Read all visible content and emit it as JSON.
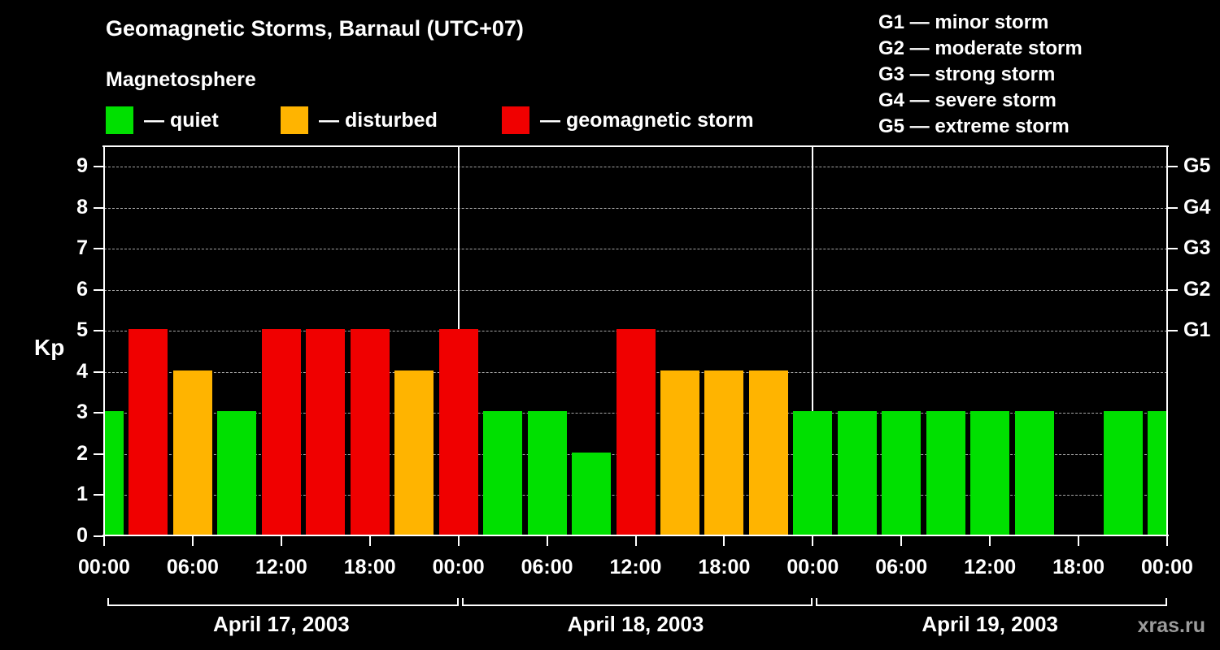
{
  "header": {
    "title": "Geomagnetic Storms, Barnaul (UTC+07)",
    "subtitle": "Magnetosphere"
  },
  "legend": {
    "items": [
      {
        "name": "quiet",
        "label": "— quiet",
        "color": "#00e000"
      },
      {
        "name": "disturbed",
        "label": "— disturbed",
        "color": "#ffb400"
      },
      {
        "name": "storm",
        "label": "— geomagnetic storm",
        "color": "#f00000"
      }
    ]
  },
  "storm_scale": [
    "G1 — minor storm",
    "G2 — moderate storm",
    "G3 — strong storm",
    "G4 — severe storm",
    "G5 — extreme storm"
  ],
  "watermark": "xras.ru",
  "chart_data": {
    "type": "bar",
    "title": "Geomagnetic Storms, Barnaul (UTC+07)",
    "ylabel": "Kp",
    "ylim": [
      0,
      9.5
    ],
    "yticks": [
      0,
      1,
      2,
      3,
      4,
      5,
      6,
      7,
      8,
      9
    ],
    "grid": "dashed horizontal at Kp 1-9",
    "right_axis": [
      {
        "label": "G1",
        "kp": 5
      },
      {
        "label": "G2",
        "kp": 6
      },
      {
        "label": "G3",
        "kp": 7
      },
      {
        "label": "G4",
        "kp": 8
      },
      {
        "label": "G5",
        "kp": 9
      }
    ],
    "x_span_hours": 72,
    "xticks": [
      {
        "hour": 0,
        "label": "00:00"
      },
      {
        "hour": 6,
        "label": "06:00"
      },
      {
        "hour": 12,
        "label": "12:00"
      },
      {
        "hour": 18,
        "label": "18:00"
      },
      {
        "hour": 24,
        "label": "00:00"
      },
      {
        "hour": 30,
        "label": "06:00"
      },
      {
        "hour": 36,
        "label": "12:00"
      },
      {
        "hour": 42,
        "label": "18:00"
      },
      {
        "hour": 48,
        "label": "00:00"
      },
      {
        "hour": 54,
        "label": "06:00"
      },
      {
        "hour": 60,
        "label": "12:00"
      },
      {
        "hour": 66,
        "label": "18:00"
      },
      {
        "hour": 72,
        "label": "00:00"
      }
    ],
    "day_separators_hours": [
      24,
      48
    ],
    "days": [
      {
        "label": "April 17, 2003",
        "start_hour": 0,
        "end_hour": 24
      },
      {
        "label": "April 18, 2003",
        "start_hour": 24,
        "end_hour": 48
      },
      {
        "label": "April 19, 2003",
        "start_hour": 48,
        "end_hour": 72
      }
    ],
    "colors": {
      "quiet": "#00e000",
      "disturbed": "#ffb400",
      "storm": "#f00000"
    },
    "color_rules": {
      "storm_min_kp": 5,
      "disturbed_kp": 4
    },
    "points": [
      {
        "hour": 0,
        "kp": 3
      },
      {
        "hour": 3,
        "kp": 5
      },
      {
        "hour": 6,
        "kp": 4
      },
      {
        "hour": 9,
        "kp": 3
      },
      {
        "hour": 12,
        "kp": 5
      },
      {
        "hour": 15,
        "kp": 5
      },
      {
        "hour": 18,
        "kp": 5
      },
      {
        "hour": 21,
        "kp": 4
      },
      {
        "hour": 24,
        "kp": 5
      },
      {
        "hour": 27,
        "kp": 3
      },
      {
        "hour": 30,
        "kp": 3
      },
      {
        "hour": 33,
        "kp": 2
      },
      {
        "hour": 36,
        "kp": 5
      },
      {
        "hour": 39,
        "kp": 4
      },
      {
        "hour": 42,
        "kp": 4
      },
      {
        "hour": 45,
        "kp": 4
      },
      {
        "hour": 48,
        "kp": 3
      },
      {
        "hour": 51,
        "kp": 3
      },
      {
        "hour": 54,
        "kp": 3
      },
      {
        "hour": 57,
        "kp": 3
      },
      {
        "hour": 60,
        "kp": 3
      },
      {
        "hour": 63,
        "kp": 3
      },
      {
        "hour": 66,
        "kp": null
      },
      {
        "hour": 69,
        "kp": 3
      },
      {
        "hour": 72,
        "kp": 3
      }
    ]
  }
}
